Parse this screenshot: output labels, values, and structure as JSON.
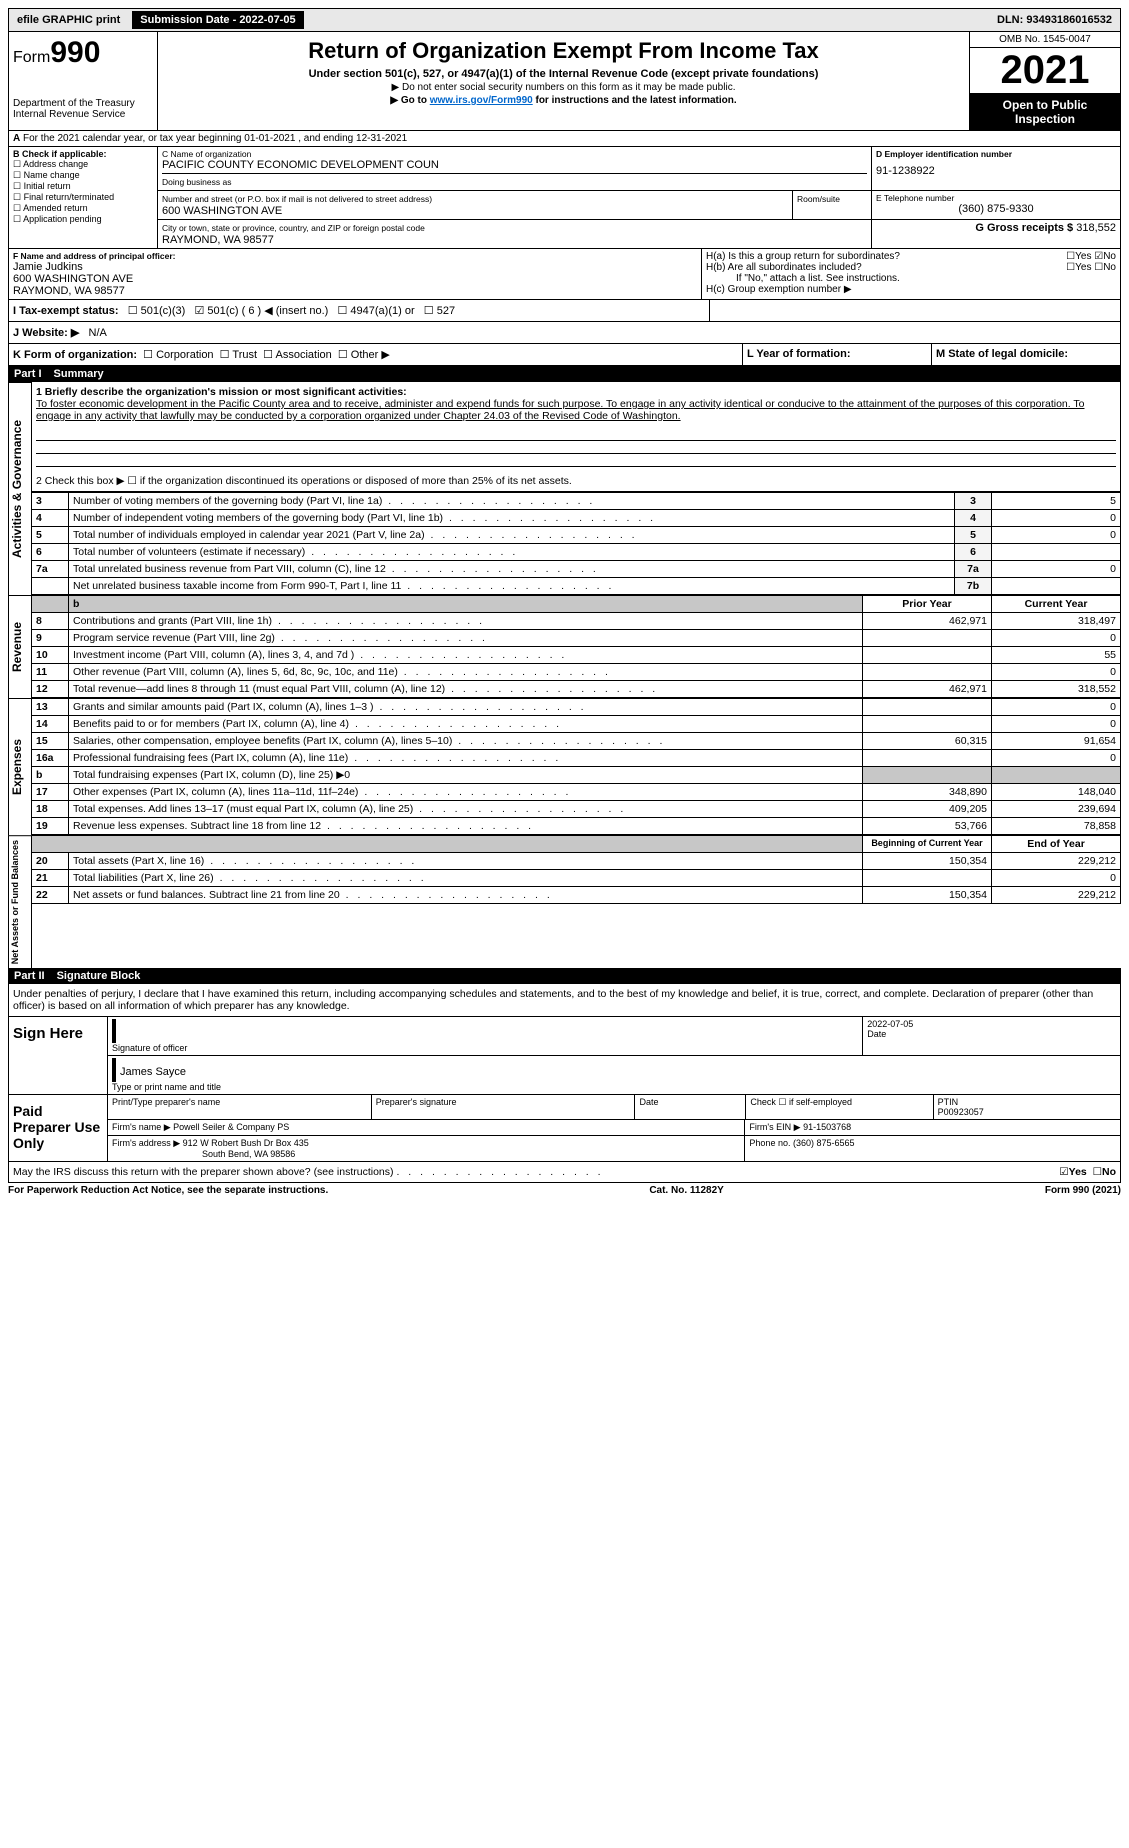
{
  "topbar": {
    "efile": "efile GRAPHIC print",
    "submission_label": "Submission Date - 2022-07-05",
    "dln": "DLN: 93493186016532"
  },
  "header": {
    "form_prefix": "Form",
    "form_number": "990",
    "dept1": "Department of the Treasury",
    "dept2": "Internal Revenue Service",
    "title": "Return of Organization Exempt From Income Tax",
    "subtitle": "Under section 501(c), 527, or 4947(a)(1) of the Internal Revenue Code (except private foundations)",
    "note1": "▶ Do not enter social security numbers on this form as it may be made public.",
    "note2_pre": "▶ Go to ",
    "note2_link": "www.irs.gov/Form990",
    "note2_post": " for instructions and the latest information.",
    "omb": "OMB No. 1545-0047",
    "year": "2021",
    "open_pub": "Open to Public Inspection"
  },
  "periodA": "For the 2021 calendar year, or tax year beginning 01-01-2021     , and ending 12-31-2021",
  "boxB": {
    "label": "B Check if applicable:",
    "items": [
      "Address change",
      "Name change",
      "Initial return",
      "Final return/terminated",
      "Amended return",
      "Application pending"
    ]
  },
  "boxC": {
    "name_label": "C Name of organization",
    "name": "PACIFIC COUNTY ECONOMIC DEVELOPMENT COUN",
    "dba_label": "Doing business as",
    "addr_label": "Number and street (or P.O. box if mail is not delivered to street address)",
    "room_label": "Room/suite",
    "addr": "600 WASHINGTON AVE",
    "city_label": "City or town, state or province, country, and ZIP or foreign postal code",
    "city": "RAYMOND, WA  98577"
  },
  "boxD": {
    "label": "D Employer identification number",
    "value": "91-1238922"
  },
  "boxE": {
    "label": "E Telephone number",
    "value": "(360) 875-9330"
  },
  "boxG": {
    "label": "G Gross receipts $",
    "value": "318,552"
  },
  "boxF": {
    "label": "F  Name and address of principal officer:",
    "name": "Jamie Judkins",
    "addr1": "600 WASHINGTON AVE",
    "addr2": "RAYMOND, WA  98577"
  },
  "boxH": {
    "a": "H(a)  Is this a group return for subordinates?",
    "b": "H(b)  Are all subordinates included?",
    "b_note": "If \"No,\" attach a list. See instructions.",
    "c": "H(c)  Group exemption number ▶",
    "yes": "Yes",
    "no": "No"
  },
  "boxI": {
    "label": "I  Tax-exempt status:",
    "opts": [
      "501(c)(3)",
      "501(c) ( 6 ) ◀ (insert no.)",
      "4947(a)(1) or",
      "527"
    ]
  },
  "boxJ": {
    "label": "J  Website: ▶",
    "value": "N/A"
  },
  "boxK": {
    "label": "K Form of organization:",
    "opts": [
      "Corporation",
      "Trust",
      "Association",
      "Other ▶"
    ]
  },
  "boxL": "L Year of formation:",
  "boxM": "M State of legal domicile:",
  "part1": {
    "num": "Part I",
    "title": "Summary"
  },
  "summary1": {
    "label": "1  Briefly describe the organization's mission or most significant activities:",
    "text": "To foster economic development in the Pacific County area and to receive, administer and expend funds for such purpose. To engage in any activity identical or conducive to the attainment of the purposes of this corporation. To engage in any activity that lawfully may be conducted by a corporation organized under Chapter 24.03 of the Revised Code of Washington."
  },
  "summary2": "2   Check this box ▶ ☐  if the organization discontinued its operations or disposed of more than 25% of its net assets.",
  "gov_rows": [
    {
      "n": "3",
      "t": "Number of voting members of the governing body (Part VI, line 1a)",
      "box": "3",
      "v": "5"
    },
    {
      "n": "4",
      "t": "Number of independent voting members of the governing body (Part VI, line 1b)",
      "box": "4",
      "v": "0"
    },
    {
      "n": "5",
      "t": "Total number of individuals employed in calendar year 2021 (Part V, line 2a)",
      "box": "5",
      "v": "0"
    },
    {
      "n": "6",
      "t": "Total number of volunteers (estimate if necessary)",
      "box": "6",
      "v": ""
    },
    {
      "n": "7a",
      "t": "Total unrelated business revenue from Part VIII, column (C), line 12",
      "box": "7a",
      "v": "0"
    },
    {
      "n": "",
      "t": "Net unrelated business taxable income from Form 990-T, Part I, line 11",
      "box": "7b",
      "v": ""
    }
  ],
  "pycy": {
    "prior": "Prior Year",
    "current": "Current Year"
  },
  "rev_rows": [
    {
      "n": "8",
      "t": "Contributions and grants (Part VIII, line 1h)",
      "p": "462,971",
      "c": "318,497"
    },
    {
      "n": "9",
      "t": "Program service revenue (Part VIII, line 2g)",
      "p": "",
      "c": "0"
    },
    {
      "n": "10",
      "t": "Investment income (Part VIII, column (A), lines 3, 4, and 7d )",
      "p": "",
      "c": "55"
    },
    {
      "n": "11",
      "t": "Other revenue (Part VIII, column (A), lines 5, 6d, 8c, 9c, 10c, and 11e)",
      "p": "",
      "c": "0"
    },
    {
      "n": "12",
      "t": "Total revenue—add lines 8 through 11 (must equal Part VIII, column (A), line 12)",
      "p": "462,971",
      "c": "318,552"
    }
  ],
  "exp_rows": [
    {
      "n": "13",
      "t": "Grants and similar amounts paid (Part IX, column (A), lines 1–3 )",
      "p": "",
      "c": "0"
    },
    {
      "n": "14",
      "t": "Benefits paid to or for members (Part IX, column (A), line 4)",
      "p": "",
      "c": "0"
    },
    {
      "n": "15",
      "t": "Salaries, other compensation, employee benefits (Part IX, column (A), lines 5–10)",
      "p": "60,315",
      "c": "91,654"
    },
    {
      "n": "16a",
      "t": "Professional fundraising fees (Part IX, column (A), line 11e)",
      "p": "",
      "c": "0"
    },
    {
      "n": "b",
      "t": "Total fundraising expenses (Part IX, column (D), line 25) ▶0",
      "shade": true
    },
    {
      "n": "17",
      "t": "Other expenses (Part IX, column (A), lines 11a–11d, 11f–24e)",
      "p": "348,890",
      "c": "148,040"
    },
    {
      "n": "18",
      "t": "Total expenses. Add lines 13–17 (must equal Part IX, column (A), line 25)",
      "p": "409,205",
      "c": "239,694"
    },
    {
      "n": "19",
      "t": "Revenue less expenses. Subtract line 18 from line 12",
      "p": "53,766",
      "c": "78,858"
    }
  ],
  "na_header": {
    "beg": "Beginning of Current Year",
    "end": "End of Year"
  },
  "na_rows": [
    {
      "n": "20",
      "t": "Total assets (Part X, line 16)",
      "p": "150,354",
      "c": "229,212"
    },
    {
      "n": "21",
      "t": "Total liabilities (Part X, line 26)",
      "p": "",
      "c": "0"
    },
    {
      "n": "22",
      "t": "Net assets or fund balances. Subtract line 21 from line 20",
      "p": "150,354",
      "c": "229,212"
    }
  ],
  "sidelabels": {
    "gov": "Activities & Governance",
    "rev": "Revenue",
    "exp": "Expenses",
    "na": "Net Assets or Fund Balances"
  },
  "part2": {
    "num": "Part II",
    "title": "Signature Block"
  },
  "perjury": "Under penalties of perjury, I declare that I have examined this return, including accompanying schedules and statements, and to the best of my knowledge and belief, it is true, correct, and complete. Declaration of preparer (other than officer) is based on all information of which preparer has any knowledge.",
  "sign": {
    "here": "Sign Here",
    "sig_officer": "Signature of officer",
    "date": "Date",
    "date_val": "2022-07-05",
    "name": "James Sayce",
    "name_label": "Type or print name and title"
  },
  "paid": {
    "label": "Paid Preparer Use Only",
    "cols": [
      "Print/Type preparer's name",
      "Preparer's signature",
      "Date"
    ],
    "check": "Check ☐ if self-employed",
    "ptin_label": "PTIN",
    "ptin": "P00923057",
    "firm_name_label": "Firm's name      ▶",
    "firm_name": "Powell Seiler & Company PS",
    "firm_ein_label": "Firm's EIN ▶",
    "firm_ein": "91-1503768",
    "firm_addr_label": "Firm's address ▶",
    "firm_addr1": "912 W Robert Bush Dr Box 435",
    "firm_addr2": "South Bend, WA  98586",
    "phone_label": "Phone no.",
    "phone": "(360) 875-6565"
  },
  "discuss": "May the IRS discuss this return with the preparer shown above? (see instructions)",
  "discuss_yes": "Yes",
  "discuss_no": "No",
  "footer": {
    "pra": "For Paperwork Reduction Act Notice, see the separate instructions.",
    "cat": "Cat. No. 11282Y",
    "form": "Form 990 (2021)"
  }
}
